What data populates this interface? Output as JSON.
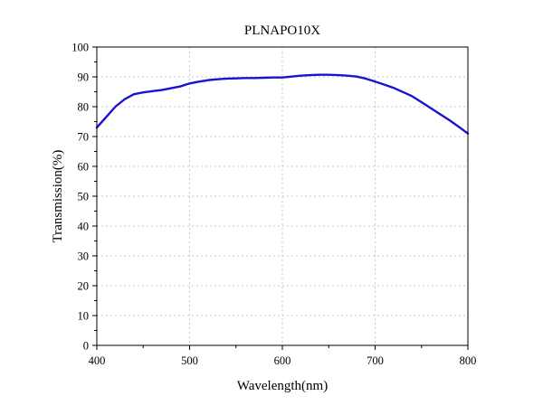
{
  "chart_data": {
    "type": "line",
    "title": "PLNAPO10X",
    "xlabel": "Wavelength(nm)",
    "ylabel": "Transmission(%)",
    "xlim": [
      400,
      800
    ],
    "ylim": [
      0,
      100
    ],
    "x_ticks": [
      400,
      500,
      600,
      700,
      800
    ],
    "y_ticks": [
      0,
      10,
      20,
      30,
      40,
      50,
      60,
      70,
      80,
      90,
      100
    ],
    "grid": true,
    "legend": "none",
    "series": [
      {
        "color": "#1a12d6",
        "x": [
          400,
          410,
          420,
          430,
          440,
          450,
          460,
          470,
          480,
          490,
          500,
          510,
          520,
          530,
          540,
          550,
          560,
          570,
          580,
          590,
          600,
          610,
          620,
          630,
          640,
          650,
          660,
          670,
          680,
          690,
          700,
          710,
          720,
          730,
          740,
          750,
          760,
          770,
          780,
          790,
          800
        ],
        "y": [
          73,
          76.5,
          80,
          82.5,
          84.2,
          84.8,
          85.2,
          85.6,
          86.2,
          86.8,
          87.8,
          88.4,
          88.9,
          89.2,
          89.4,
          89.5,
          89.6,
          89.6,
          89.7,
          89.8,
          89.8,
          90.1,
          90.4,
          90.6,
          90.7,
          90.7,
          90.6,
          90.4,
          90.1,
          89.4,
          88.4,
          87.4,
          86.3,
          84.9,
          83.5,
          81.5,
          79.5,
          77.5,
          75.5,
          73.3,
          71
        ]
      }
    ]
  }
}
